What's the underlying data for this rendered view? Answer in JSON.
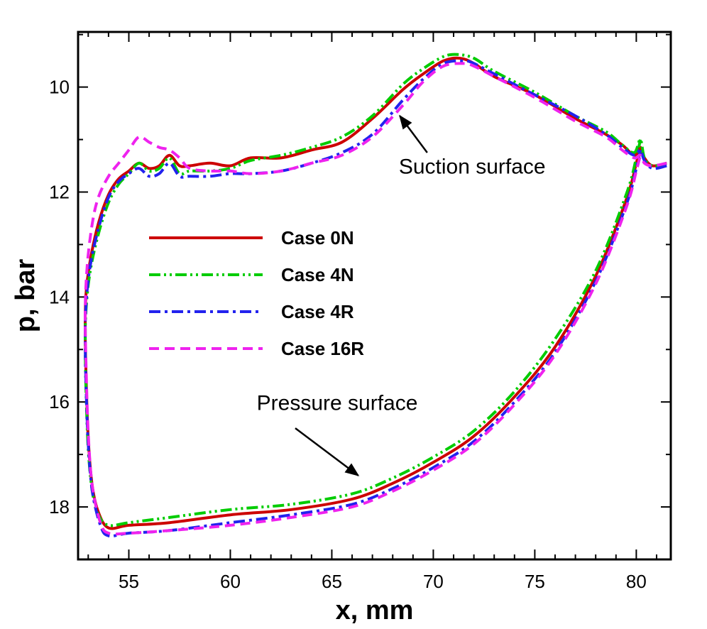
{
  "chart_data": {
    "type": "line",
    "xlabel": "x, mm",
    "ylabel": "p, bar",
    "xlim": [
      52.5,
      81.7
    ],
    "ylim": [
      19.0,
      8.95
    ],
    "y_inverted": true,
    "x_ticks": [
      55,
      60,
      65,
      70,
      75,
      80
    ],
    "y_ticks": [
      10,
      12,
      14,
      16,
      18
    ],
    "legend_position": "center-left",
    "series": [
      {
        "name": "Case 0N",
        "color": "#cc0000",
        "dash": "solid",
        "points": [
          [
            81.5,
            11.45
          ],
          [
            80.8,
            11.5
          ],
          [
            80.4,
            11.35
          ],
          [
            80.2,
            11.15
          ],
          [
            79.9,
            11.3
          ],
          [
            79.3,
            11.1
          ],
          [
            78.5,
            10.9
          ],
          [
            77,
            10.6
          ],
          [
            75,
            10.15
          ],
          [
            73,
            9.8
          ],
          [
            72,
            9.55
          ],
          [
            71.3,
            9.45
          ],
          [
            70.5,
            9.5
          ],
          [
            69.5,
            9.75
          ],
          [
            68.5,
            10.05
          ],
          [
            67,
            10.6
          ],
          [
            65.5,
            11.05
          ],
          [
            64,
            11.2
          ],
          [
            62.5,
            11.35
          ],
          [
            61,
            11.35
          ],
          [
            60,
            11.5
          ],
          [
            59,
            11.45
          ],
          [
            58,
            11.5
          ],
          [
            57.5,
            11.5
          ],
          [
            57,
            11.3
          ],
          [
            56.5,
            11.5
          ],
          [
            56,
            11.55
          ],
          [
            55.5,
            11.45
          ],
          [
            55,
            11.6
          ],
          [
            54.5,
            11.75
          ],
          [
            54,
            12.05
          ],
          [
            53.5,
            12.6
          ],
          [
            53.1,
            13.3
          ],
          [
            52.9,
            13.9
          ],
          [
            52.85,
            14.6
          ],
          [
            52.9,
            15.6
          ],
          [
            53,
            16.7
          ],
          [
            53.2,
            17.6
          ],
          [
            53.5,
            18.1
          ],
          [
            54,
            18.4
          ],
          [
            55,
            18.35
          ],
          [
            57,
            18.3
          ],
          [
            60,
            18.15
          ],
          [
            63,
            18.05
          ],
          [
            66,
            17.85
          ],
          [
            68,
            17.55
          ],
          [
            70,
            17.15
          ],
          [
            72,
            16.65
          ],
          [
            74,
            15.9
          ],
          [
            76,
            14.95
          ],
          [
            78,
            13.6
          ],
          [
            79.5,
            12.15
          ],
          [
            80,
            11.45
          ],
          [
            80.2,
            11.15
          ]
        ]
      },
      {
        "name": "Case 4N",
        "color": "#00cc00",
        "dash": "dash-dot-dot",
        "points": [
          [
            81.5,
            11.45
          ],
          [
            80.8,
            11.5
          ],
          [
            80.4,
            11.35
          ],
          [
            80.2,
            11.0
          ],
          [
            79.9,
            11.25
          ],
          [
            79.3,
            11.1
          ],
          [
            78.5,
            10.85
          ],
          [
            77,
            10.55
          ],
          [
            75,
            10.1
          ],
          [
            73,
            9.7
          ],
          [
            72,
            9.45
          ],
          [
            71.2,
            9.38
          ],
          [
            70.5,
            9.42
          ],
          [
            69.5,
            9.65
          ],
          [
            68.5,
            9.95
          ],
          [
            67,
            10.55
          ],
          [
            65.5,
            10.95
          ],
          [
            64,
            11.15
          ],
          [
            62.5,
            11.3
          ],
          [
            61,
            11.4
          ],
          [
            60,
            11.55
          ],
          [
            59,
            11.6
          ],
          [
            58,
            11.6
          ],
          [
            57.5,
            11.65
          ],
          [
            57,
            11.35
          ],
          [
            56.5,
            11.55
          ],
          [
            56,
            11.6
          ],
          [
            55.5,
            11.45
          ],
          [
            55,
            11.65
          ],
          [
            54.5,
            11.85
          ],
          [
            54,
            12.2
          ],
          [
            53.5,
            12.8
          ],
          [
            53.1,
            13.5
          ],
          [
            52.9,
            14.2
          ],
          [
            52.85,
            14.9
          ],
          [
            52.9,
            15.9
          ],
          [
            53,
            16.9
          ],
          [
            53.2,
            17.7
          ],
          [
            53.5,
            18.15
          ],
          [
            54,
            18.35
          ],
          [
            55,
            18.3
          ],
          [
            57,
            18.2
          ],
          [
            60,
            18.05
          ],
          [
            63,
            17.95
          ],
          [
            66,
            17.75
          ],
          [
            68,
            17.45
          ],
          [
            70,
            17.05
          ],
          [
            72,
            16.55
          ],
          [
            74,
            15.8
          ],
          [
            76,
            14.8
          ],
          [
            78,
            13.5
          ],
          [
            79.5,
            12.05
          ],
          [
            80,
            11.35
          ],
          [
            80.2,
            11.0
          ]
        ]
      },
      {
        "name": "Case 4R",
        "color": "#2222ee",
        "dash": "dash-dot",
        "points": [
          [
            81.5,
            11.5
          ],
          [
            80.8,
            11.55
          ],
          [
            80.4,
            11.4
          ],
          [
            80.2,
            11.2
          ],
          [
            79.9,
            11.3
          ],
          [
            79.3,
            11.15
          ],
          [
            78.5,
            10.9
          ],
          [
            77,
            10.55
          ],
          [
            75,
            10.15
          ],
          [
            73,
            9.75
          ],
          [
            72,
            9.55
          ],
          [
            71.5,
            9.5
          ],
          [
            70.5,
            9.55
          ],
          [
            69.5,
            9.85
          ],
          [
            68.5,
            10.25
          ],
          [
            67,
            10.9
          ],
          [
            65.5,
            11.25
          ],
          [
            64,
            11.45
          ],
          [
            62.5,
            11.6
          ],
          [
            61,
            11.65
          ],
          [
            60,
            11.65
          ],
          [
            59,
            11.7
          ],
          [
            58,
            11.7
          ],
          [
            57.5,
            11.7
          ],
          [
            57,
            11.45
          ],
          [
            56.5,
            11.65
          ],
          [
            56,
            11.7
          ],
          [
            55.5,
            11.55
          ],
          [
            55,
            11.65
          ],
          [
            54.5,
            11.8
          ],
          [
            54,
            12.1
          ],
          [
            53.5,
            12.7
          ],
          [
            53.1,
            13.4
          ],
          [
            52.9,
            14.1
          ],
          [
            52.85,
            14.8
          ],
          [
            52.9,
            15.8
          ],
          [
            53,
            16.8
          ],
          [
            53.2,
            17.7
          ],
          [
            53.6,
            18.35
          ],
          [
            54,
            18.55
          ],
          [
            55,
            18.5
          ],
          [
            57,
            18.45
          ],
          [
            60,
            18.3
          ],
          [
            63,
            18.15
          ],
          [
            66,
            17.95
          ],
          [
            68,
            17.65
          ],
          [
            70,
            17.25
          ],
          [
            72,
            16.75
          ],
          [
            74,
            16.0
          ],
          [
            76,
            15.05
          ],
          [
            78,
            13.7
          ],
          [
            79.5,
            12.25
          ],
          [
            80,
            11.55
          ],
          [
            80.2,
            11.2
          ]
        ]
      },
      {
        "name": "Case 16R",
        "color": "#ee22ee",
        "dash": "dash",
        "points": [
          [
            81.5,
            11.45
          ],
          [
            80.8,
            11.5
          ],
          [
            80.4,
            11.45
          ],
          [
            80.2,
            11.3
          ],
          [
            79.9,
            11.35
          ],
          [
            79.3,
            11.2
          ],
          [
            78.5,
            10.95
          ],
          [
            77,
            10.65
          ],
          [
            75,
            10.2
          ],
          [
            73,
            9.8
          ],
          [
            72,
            9.6
          ],
          [
            71.5,
            9.55
          ],
          [
            70.5,
            9.6
          ],
          [
            69.5,
            9.9
          ],
          [
            68.5,
            10.35
          ],
          [
            67,
            10.95
          ],
          [
            65.5,
            11.3
          ],
          [
            64,
            11.45
          ],
          [
            62.5,
            11.6
          ],
          [
            61,
            11.65
          ],
          [
            60,
            11.6
          ],
          [
            59,
            11.6
          ],
          [
            58,
            11.55
          ],
          [
            57.5,
            11.35
          ],
          [
            57,
            11.2
          ],
          [
            56.5,
            11.15
          ],
          [
            56,
            11.05
          ],
          [
            55.5,
            10.95
          ],
          [
            55,
            11.2
          ],
          [
            54.5,
            11.45
          ],
          [
            54,
            11.7
          ],
          [
            53.5,
            12.1
          ],
          [
            53.2,
            12.6
          ],
          [
            52.95,
            13.4
          ],
          [
            52.85,
            14.3
          ],
          [
            52.9,
            15.4
          ],
          [
            53,
            16.6
          ],
          [
            53.2,
            17.6
          ],
          [
            53.6,
            18.3
          ],
          [
            54,
            18.5
          ],
          [
            55,
            18.5
          ],
          [
            57,
            18.45
          ],
          [
            60,
            18.35
          ],
          [
            63,
            18.2
          ],
          [
            66,
            18.0
          ],
          [
            68,
            17.7
          ],
          [
            70,
            17.3
          ],
          [
            72,
            16.8
          ],
          [
            74,
            16.05
          ],
          [
            76,
            15.1
          ],
          [
            78,
            13.75
          ],
          [
            79.5,
            12.3
          ],
          [
            80,
            11.6
          ],
          [
            80.2,
            11.3
          ]
        ]
      }
    ],
    "annotations": [
      {
        "text": "Suction surface",
        "text_at": [
          68.3,
          11.65
        ],
        "arrow_from": [
          69.7,
          11.25
        ],
        "arrow_to": [
          68.35,
          10.55
        ]
      },
      {
        "text": "Pressure surface",
        "text_at": [
          61.3,
          16.15
        ],
        "arrow_from": [
          63.2,
          16.5
        ],
        "arrow_to": [
          66.3,
          17.4
        ]
      }
    ]
  }
}
